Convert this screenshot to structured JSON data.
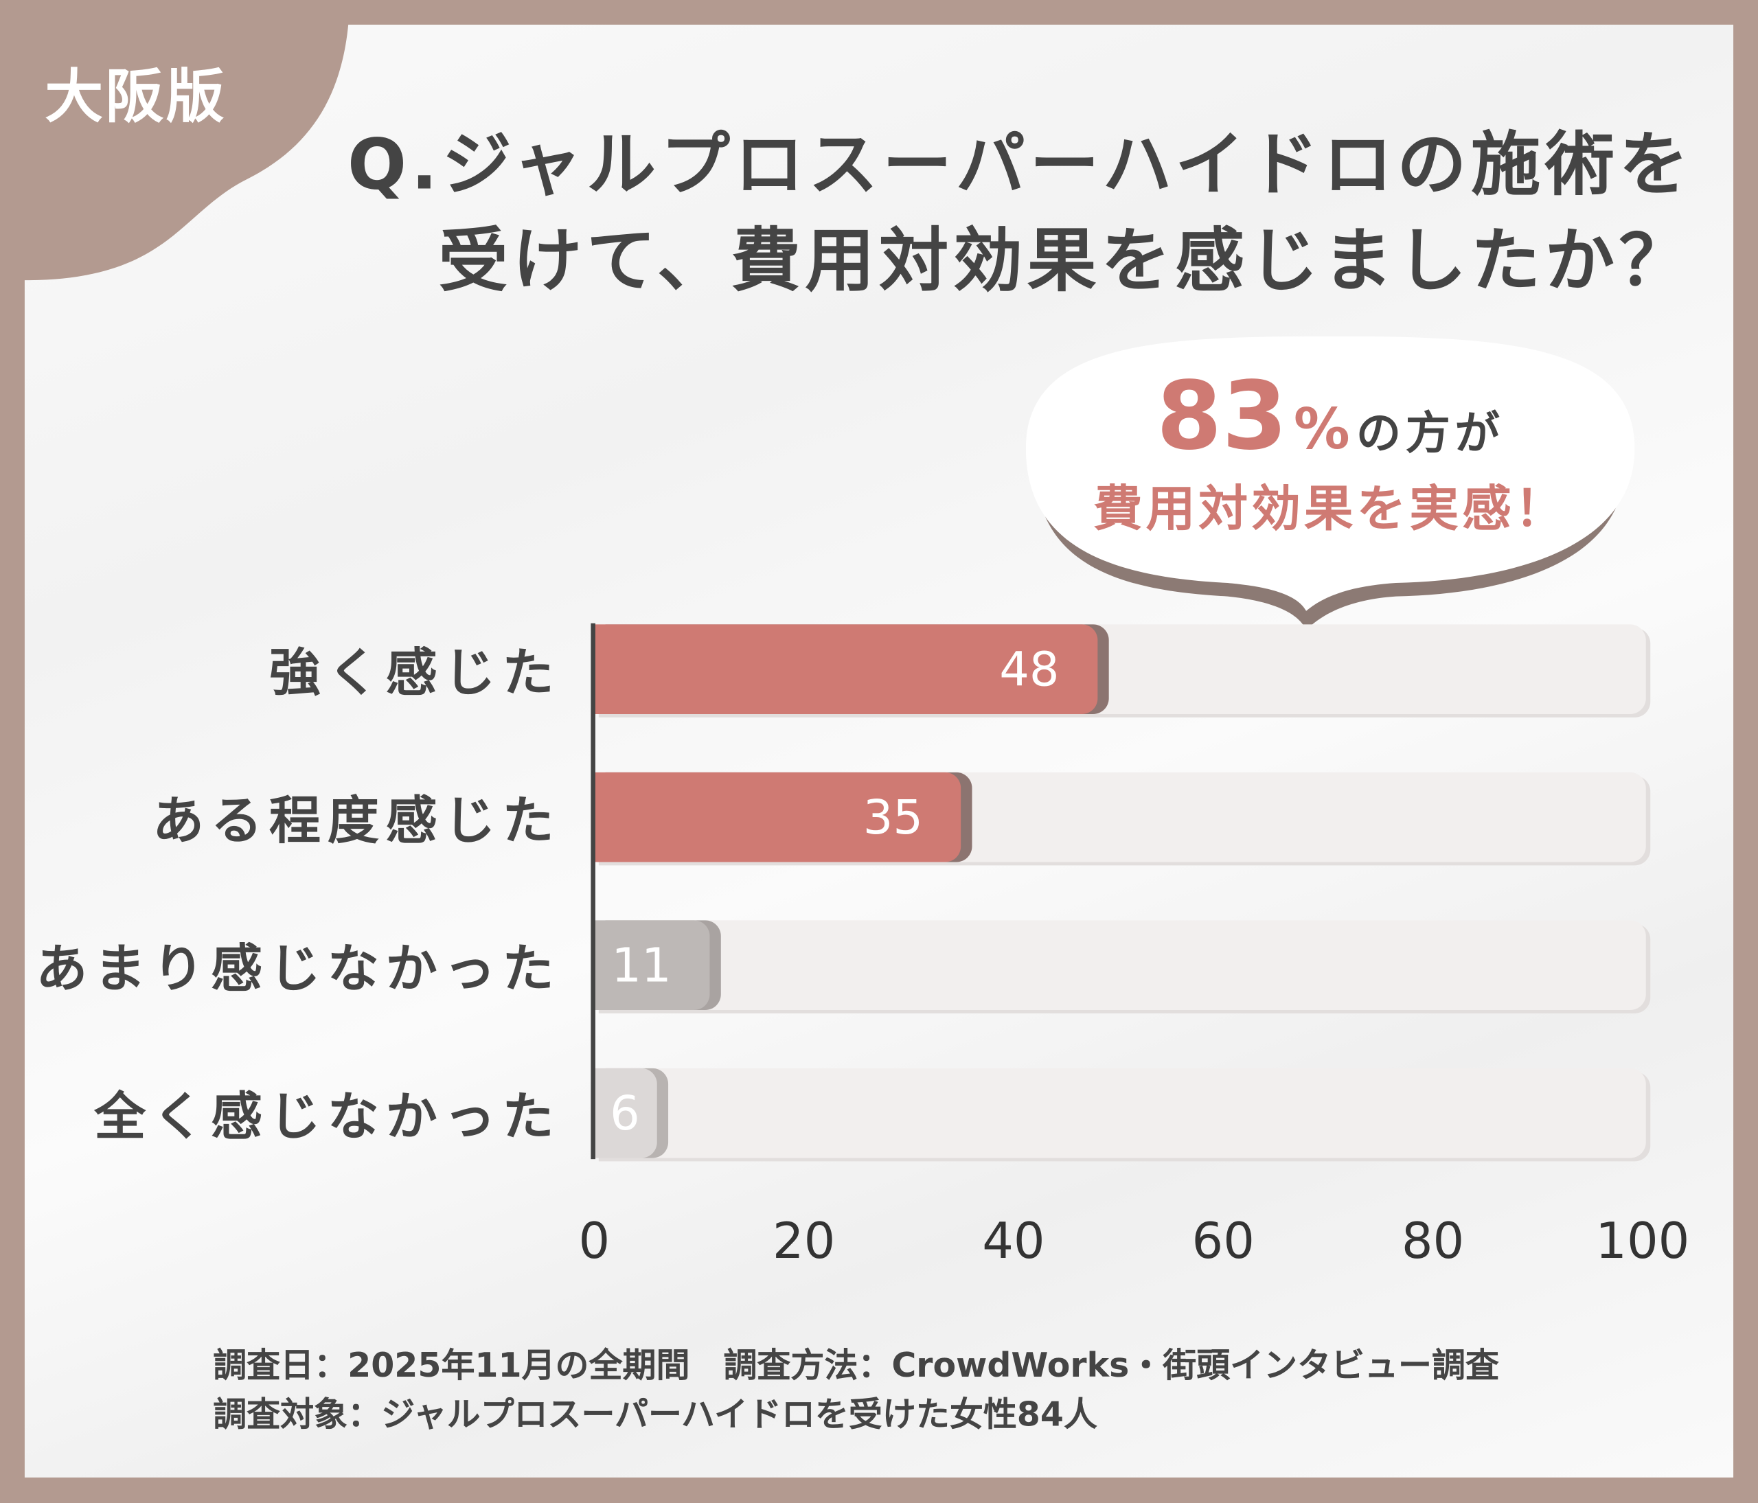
{
  "badge": "大阪版",
  "title": {
    "line1": "Q.ジャルプロスーパーハイドロの施術を",
    "line2": "受けて、費用対効果を感じましたか？"
  },
  "callout": {
    "number": "83",
    "unit": "%",
    "suffix": "の方が",
    "line2": "費用対効果を実感！"
  },
  "colors": {
    "frame": "#b39a90",
    "accent": "#cf7a73",
    "grey": "#bdb8b6",
    "light": "#dcd8d7",
    "text": "#444444"
  },
  "chart_data": {
    "type": "bar",
    "orientation": "horizontal",
    "categories": [
      "強く感じた",
      "ある程度感じた",
      "あまり感じなかった",
      "全く感じなかった"
    ],
    "values": [
      48,
      35,
      11,
      6
    ],
    "xlim": [
      0,
      100
    ],
    "xticks": [
      "0",
      "20",
      "40",
      "60",
      "80",
      "100"
    ],
    "grid": false
  },
  "footer": {
    "line1": "調査日：2025年11月の全期間　調査方法：CrowdWorks・街頭インタビュー調査",
    "line2": "調査対象：ジャルプロスーパーハイドロを受けた女性84人"
  }
}
